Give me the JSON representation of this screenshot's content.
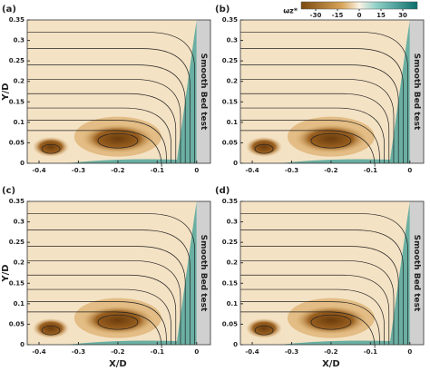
{
  "chart_data": [
    {
      "type": "contour",
      "panel_label": "(a)",
      "wall_label": "Smooth Bed test",
      "y_label": "Y/D",
      "xlim": [
        -0.43,
        0.035
      ],
      "ylim": [
        0,
        0.35
      ],
      "xticks": [
        -0.4,
        -0.3,
        -0.2,
        -0.1,
        0
      ],
      "yticks": [
        0,
        0.05,
        0.1,
        0.15,
        0.2,
        0.25,
        0.3,
        0.35
      ]
    },
    {
      "type": "contour",
      "panel_label": "(b)",
      "wall_label": "Smooth Bed test",
      "xlim": [
        -0.43,
        0.035
      ],
      "ylim": [
        0,
        0.35
      ],
      "xticks": [
        -0.4,
        -0.3,
        -0.2,
        -0.1,
        0
      ],
      "yticks": [
        0,
        0.05,
        0.1,
        0.15,
        0.2,
        0.25,
        0.3,
        0.35
      ],
      "colorbar": {
        "label": "ωz*",
        "clim": [
          -40,
          40
        ],
        "ticks": [
          -30,
          -15,
          0,
          15,
          30
        ]
      }
    },
    {
      "type": "contour",
      "panel_label": "(c)",
      "wall_label": "Smooth Bed test",
      "y_label": "Y/D",
      "x_label": "X/D",
      "xlim": [
        -0.43,
        0.035
      ],
      "ylim": [
        0,
        0.35
      ],
      "xticks": [
        -0.4,
        -0.3,
        -0.2,
        -0.1,
        0
      ],
      "yticks": [
        0,
        0.05,
        0.1,
        0.15,
        0.2,
        0.25,
        0.3,
        0.35
      ]
    },
    {
      "type": "contour",
      "panel_label": "(d)",
      "wall_label": "Smooth Bed test",
      "x_label": "X/D",
      "xlim": [
        -0.43,
        0.035
      ],
      "ylim": [
        0,
        0.35
      ],
      "xticks": [
        -0.4,
        -0.3,
        -0.2,
        -0.1,
        0
      ],
      "yticks": [
        0,
        0.05,
        0.1,
        0.15,
        0.2,
        0.25,
        0.3,
        0.35
      ]
    }
  ]
}
